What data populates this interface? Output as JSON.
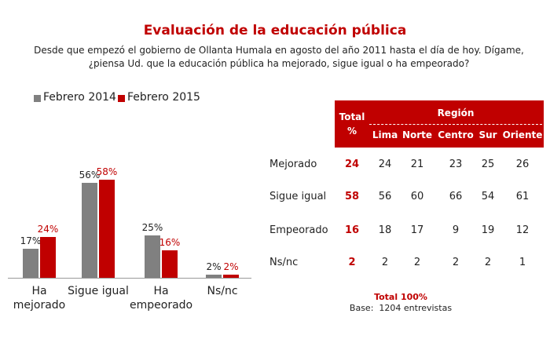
{
  "chart_data": {
    "type": "bar",
    "title": "Evaluación de la educación pública",
    "subtitle": [
      "Desde que empezó el gobierno de Ollanta Humala en agosto del año 2011 hasta el día de hoy.  Dígame,",
      "¿piensa Ud. que la educación pública ha mejorado, sigue igual o ha empeorado?"
    ],
    "categories": [
      "Ha mejorado",
      "Sigue igual",
      "Ha empeorado",
      "Ns/nc"
    ],
    "series": [
      {
        "name": "Febrero 2014",
        "color": "#808080",
        "values": [
          17,
          56,
          25,
          2
        ],
        "value_labels": [
          "17%",
          "56%",
          "25%",
          "2%"
        ]
      },
      {
        "name": "Febrero 2015",
        "color": "#c00000",
        "values": [
          24,
          58,
          16,
          2
        ],
        "value_labels": [
          "24%",
          "58%",
          "16%",
          "2%"
        ]
      }
    ],
    "legend": "top-left"
  },
  "table": {
    "total_header": [
      "Total",
      "%"
    ],
    "group_header": "Región",
    "columns": [
      "Lima",
      "Norte",
      "Centro",
      "Sur",
      "Oriente"
    ],
    "rows": [
      {
        "label": "Mejorado",
        "total": 24,
        "values": [
          24,
          21,
          23,
          25,
          26
        ]
      },
      {
        "label": "Sigue igual",
        "total": 58,
        "values": [
          56,
          60,
          66,
          54,
          61
        ]
      },
      {
        "label": "Empeorado",
        "total": 16,
        "values": [
          18,
          17,
          9,
          19,
          12
        ]
      },
      {
        "label": "Ns/nc",
        "total": 2,
        "values": [
          2,
          2,
          2,
          2,
          1
        ]
      }
    ],
    "footer_total": "Total 100%",
    "footer_base": "Base:  1204 entrevistas"
  }
}
